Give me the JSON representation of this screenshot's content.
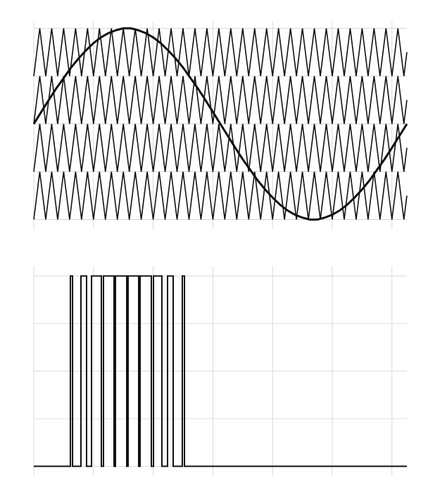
{
  "chart_data": [
    {
      "type": "line",
      "xlim": [
        0,
        6.25
      ],
      "ylim": [
        -2.2,
        2.15
      ],
      "xticks": [
        0,
        1,
        2,
        3,
        4,
        5,
        6
      ],
      "yticks": [
        -2,
        -1,
        0,
        1,
        2
      ],
      "grid": true,
      "series": [
        {
          "color": "#111111",
          "linewidth": 1.6,
          "x": [
            0,
            0.1,
            0.2,
            0.3,
            0.4,
            0.5,
            0.6,
            0.7,
            0.8,
            0.9,
            1,
            1.1,
            1.2,
            1.3,
            1.4,
            1.5,
            1.6,
            1.7,
            1.8,
            1.9,
            2,
            2.1,
            2.2,
            2.3,
            2.4,
            2.5,
            2.6,
            2.7,
            2.8,
            2.9,
            3,
            3.1,
            3.2,
            3.3,
            3.4,
            3.5,
            3.6,
            3.7,
            3.8,
            3.9,
            4,
            4.1,
            4.2,
            4.3,
            4.4,
            4.5,
            4.6,
            4.7,
            4.8,
            4.9,
            5,
            5.1,
            5.2,
            5.3,
            5.4,
            5.5,
            5.6,
            5.7,
            5.8,
            5.9,
            6,
            6.1,
            6.2,
            6.25
          ],
          "values": [
            1,
            2,
            1,
            2,
            1,
            2,
            1,
            2,
            1,
            2,
            1,
            2,
            1,
            2,
            1,
            2,
            1,
            2,
            1,
            2,
            1,
            2,
            1,
            2,
            1,
            2,
            1,
            2,
            1,
            2,
            1,
            2,
            1,
            2,
            1,
            2,
            1,
            2,
            1,
            2,
            1,
            2,
            1,
            2,
            1,
            2,
            1,
            2,
            1,
            2,
            1,
            2,
            1,
            2,
            1,
            2,
            1,
            2,
            1,
            2,
            1,
            2,
            1,
            1.5
          ]
        },
        {
          "color": "#111111",
          "linewidth": 1.6,
          "x": [
            0,
            0.1,
            0.2,
            0.3,
            0.4,
            0.5,
            0.6,
            0.7,
            0.8,
            0.9,
            1,
            1.1,
            1.2,
            1.3,
            1.4,
            1.5,
            1.6,
            1.7,
            1.8,
            1.9,
            2,
            2.1,
            2.2,
            2.3,
            2.4,
            2.5,
            2.6,
            2.7,
            2.8,
            2.9,
            3,
            3.1,
            3.2,
            3.3,
            3.4,
            3.5,
            3.6,
            3.7,
            3.8,
            3.9,
            4,
            4.1,
            4.2,
            4.3,
            4.4,
            4.5,
            4.6,
            4.7,
            4.8,
            4.9,
            5,
            5.1,
            5.2,
            5.3,
            5.4,
            5.5,
            5.6,
            5.7,
            5.8,
            5.9,
            6,
            6.1,
            6.2,
            6.25
          ],
          "values": [
            0,
            1,
            0,
            1,
            0,
            1,
            0,
            1,
            0,
            1,
            0,
            1,
            0,
            1,
            0,
            1,
            0,
            1,
            0,
            1,
            0,
            1,
            0,
            1,
            0,
            1,
            0,
            1,
            0,
            1,
            0,
            1,
            0,
            1,
            0,
            1,
            0,
            1,
            0,
            1,
            0,
            1,
            0,
            1,
            0,
            1,
            0,
            1,
            0,
            1,
            0,
            1,
            0,
            1,
            0,
            1,
            0,
            1,
            0,
            1,
            0,
            1,
            0,
            0.5
          ]
        },
        {
          "color": "#111111",
          "linewidth": 1.6,
          "x": [
            0,
            0.1,
            0.2,
            0.3,
            0.4,
            0.5,
            0.6,
            0.7,
            0.8,
            0.9,
            1,
            1.1,
            1.2,
            1.3,
            1.4,
            1.5,
            1.6,
            1.7,
            1.8,
            1.9,
            2,
            2.1,
            2.2,
            2.3,
            2.4,
            2.5,
            2.6,
            2.7,
            2.8,
            2.9,
            3,
            3.1,
            3.2,
            3.3,
            3.4,
            3.5,
            3.6,
            3.7,
            3.8,
            3.9,
            4,
            4.1,
            4.2,
            4.3,
            4.4,
            4.5,
            4.6,
            4.7,
            4.8,
            4.9,
            5,
            5.1,
            5.2,
            5.3,
            5.4,
            5.5,
            5.6,
            5.7,
            5.8,
            5.9,
            6,
            6.1,
            6.2,
            6.25
          ],
          "values": [
            -1,
            0,
            -1,
            0,
            -1,
            0,
            -1,
            0,
            -1,
            0,
            -1,
            0,
            -1,
            0,
            -1,
            0,
            -1,
            0,
            -1,
            0,
            -1,
            0,
            -1,
            0,
            -1,
            0,
            -1,
            0,
            -1,
            0,
            -1,
            0,
            -1,
            0,
            -1,
            0,
            -1,
            0,
            -1,
            0,
            -1,
            0,
            -1,
            0,
            -1,
            0,
            -1,
            0,
            -1,
            0,
            -1,
            0,
            -1,
            0,
            -1,
            0,
            -1,
            0,
            -1,
            0,
            -1,
            0,
            -1,
            -0.5
          ]
        },
        {
          "color": "#111111",
          "linewidth": 1.6,
          "x": [
            0,
            0.1,
            0.2,
            0.3,
            0.4,
            0.5,
            0.6,
            0.7,
            0.8,
            0.9,
            1,
            1.1,
            1.2,
            1.3,
            1.4,
            1.5,
            1.6,
            1.7,
            1.8,
            1.9,
            2,
            2.1,
            2.2,
            2.3,
            2.4,
            2.5,
            2.6,
            2.7,
            2.8,
            2.9,
            3,
            3.1,
            3.2,
            3.3,
            3.4,
            3.5,
            3.6,
            3.7,
            3.8,
            3.9,
            4,
            4.1,
            4.2,
            4.3,
            4.4,
            4.5,
            4.6,
            4.7,
            4.8,
            4.9,
            5,
            5.1,
            5.2,
            5.3,
            5.4,
            5.5,
            5.6,
            5.7,
            5.8,
            5.9,
            6,
            6.1,
            6.2,
            6.25
          ],
          "values": [
            -2,
            -1,
            -2,
            -1,
            -2,
            -1,
            -2,
            -1,
            -2,
            -1,
            -2,
            -1,
            -2,
            -1,
            -2,
            -1,
            -2,
            -1,
            -2,
            -1,
            -2,
            -1,
            -2,
            -1,
            -2,
            -1,
            -2,
            -1,
            -2,
            -1,
            -2,
            -1,
            -2,
            -1,
            -2,
            -1,
            -2,
            -1,
            -2,
            -1,
            -2,
            -1,
            -2,
            -1,
            -2,
            -1,
            -2,
            -1,
            -2,
            -1,
            -2,
            -1,
            -2,
            -1,
            -2,
            -1,
            -2,
            -1,
            -2,
            -1,
            -2,
            -1,
            -2,
            -1.5
          ]
        },
        {
          "color": "#111111",
          "linewidth": 3,
          "x": [
            0,
            0.125,
            0.25,
            0.375,
            0.5,
            0.625,
            0.75,
            0.875,
            1,
            1.125,
            1.25,
            1.375,
            1.5,
            1.625,
            1.75,
            1.875,
            2,
            2.125,
            2.25,
            2.375,
            2.5,
            2.625,
            2.75,
            2.875,
            3,
            3.125,
            3.25,
            3.375,
            3.5,
            3.625,
            3.75,
            3.875,
            4,
            4.125,
            4.25,
            4.375,
            4.5,
            4.625,
            4.75,
            4.875,
            5,
            5.125,
            5.25,
            5.375,
            5.5,
            5.625,
            5.75,
            5.875,
            6,
            6.125,
            6.25
          ],
          "values": [
            0,
            0.25,
            0.5,
            0.74,
            0.96,
            1.18,
            1.37,
            1.54,
            1.69,
            1.81,
            1.9,
            1.96,
            2,
            2,
            1.96,
            1.9,
            1.81,
            1.69,
            1.54,
            1.37,
            1.18,
            0.96,
            0.74,
            0.5,
            0.25,
            0,
            -0.25,
            -0.5,
            -0.74,
            -0.96,
            -1.18,
            -1.37,
            -1.54,
            -1.69,
            -1.81,
            -1.9,
            -1.96,
            -2,
            -2,
            -1.96,
            -1.9,
            -1.81,
            -1.69,
            -1.54,
            -1.37,
            -1.18,
            -0.96,
            -0.74,
            -0.5,
            -0.25,
            0
          ]
        }
      ]
    },
    {
      "type": "line",
      "xlim": [
        0,
        6.25
      ],
      "ylim": [
        -0.05,
        1.05
      ],
      "xticks": [
        0,
        1,
        2,
        3,
        4,
        5,
        6
      ],
      "yticks": [
        0,
        0.25,
        0.5,
        0.75,
        1
      ],
      "grid": true,
      "series": [
        {
          "color": "#111111",
          "linewidth": 2,
          "x": [
            0,
            0.613,
            0.613,
            0.649,
            0.649,
            0.79,
            0.79,
            0.884,
            0.884,
            0.967,
            0.967,
            1.132,
            1.132,
            1.167,
            1.167,
            1.344,
            1.344,
            1.368,
            1.368,
            1.557,
            1.557,
            1.58,
            1.58,
            1.757,
            1.757,
            1.781,
            1.781,
            1.969,
            1.969,
            2.005,
            2.005,
            2.146,
            2.146,
            2.241,
            2.241,
            2.335,
            2.335,
            2.488,
            2.488,
            2.524,
            2.524,
            6.25
          ],
          "values": [
            0,
            0,
            1,
            1,
            0,
            0,
            1,
            1,
            0,
            0,
            1,
            1,
            0,
            0,
            1,
            1,
            0,
            0,
            1,
            1,
            0,
            0,
            1,
            1,
            0,
            0,
            1,
            1,
            0,
            0,
            1,
            1,
            0,
            0,
            1,
            1,
            0,
            0,
            1,
            1,
            0,
            0
          ]
        }
      ]
    }
  ]
}
